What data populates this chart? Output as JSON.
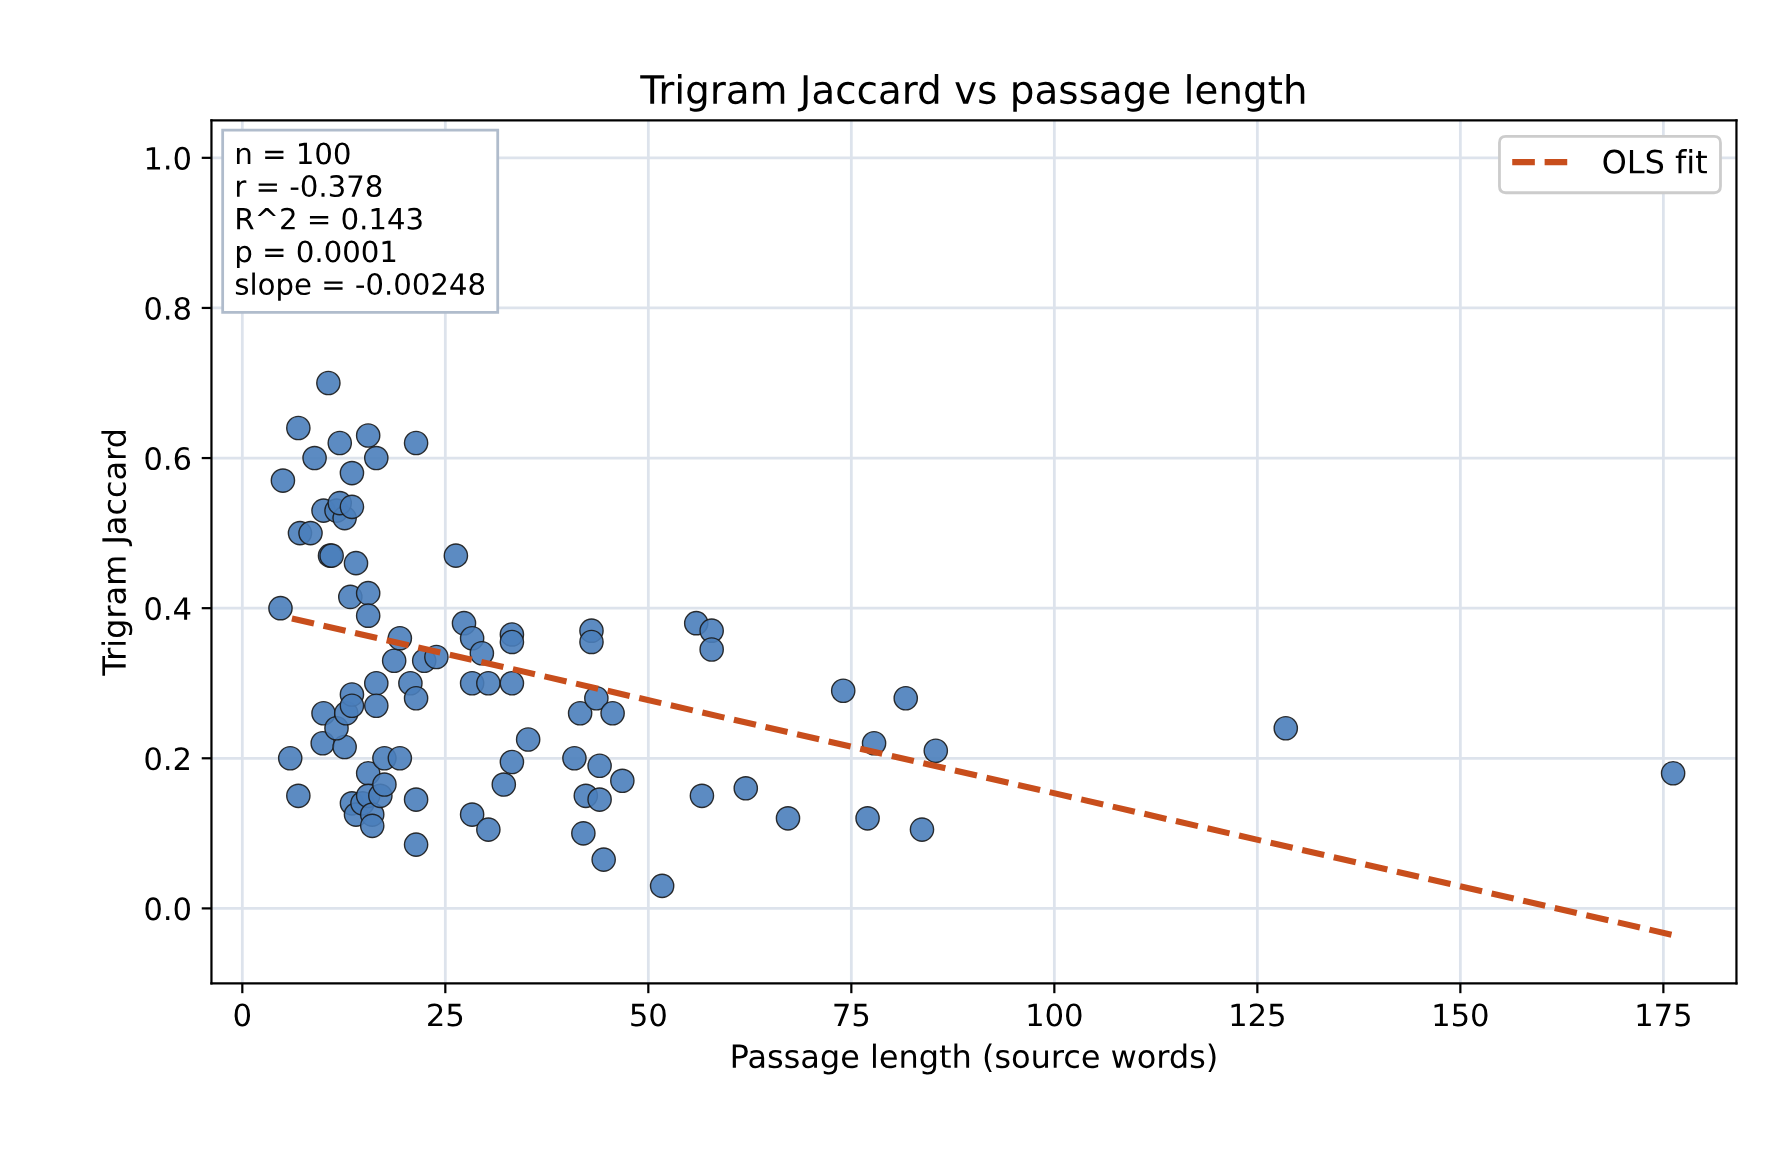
{
  "chart_data": {
    "type": "scatter",
    "title": "Trigram Jaccard vs passage length",
    "xlabel": "Passage length (source words)",
    "ylabel": "Trigram Jaccard",
    "xlim": [
      -3.8,
      184
    ],
    "ylim": [
      -0.1,
      1.05
    ],
    "xticks": [
      0,
      25,
      50,
      75,
      100,
      125,
      150,
      175
    ],
    "yticks": [
      {
        "value": 0,
        "label": "0.0"
      },
      0.2,
      0.4,
      0.6,
      0.8,
      {
        "value": 1,
        "label": "1.0"
      }
    ],
    "grid": true,
    "legend": "top right",
    "annotations": [
      "n = 100\nr = -0.378\nR^2 = 0.143\np = 0.0001\nslope = -0.00248"
    ],
    "series": [
      {
        "color": "#4a7ebb",
        "marker": "circle",
        "x": [
          4.7,
          5,
          5.9,
          6.9,
          6.9,
          7.1,
          8.4,
          8.9,
          10,
          9.9,
          10.6,
          10,
          11.6,
          10.8,
          11,
          12,
          12.6,
          12,
          13.5,
          13.5,
          13.3,
          14,
          12.6,
          11.6,
          12.8,
          13.5,
          13.5,
          13.5,
          14,
          14.8,
          15.5,
          15.5,
          15.5,
          16.5,
          16.5,
          16.5,
          15.5,
          15.5,
          16,
          16,
          17,
          17.5,
          17.5,
          18.7,
          19.4,
          19.4,
          20.7,
          21.4,
          21.4,
          21.4,
          21.4,
          22.4,
          23.9,
          26.3,
          27.3,
          28.3,
          28.3,
          28.3,
          29.5,
          30.3,
          30.3,
          32.2,
          33.2,
          33.2,
          33.2,
          33.2,
          35.2,
          40.9,
          41.6,
          42,
          42.3,
          43,
          43,
          43.6,
          44,
          44,
          44.5,
          45.6,
          46.8,
          51.7,
          55.9,
          56.6,
          57.8,
          57.8,
          62,
          67.2,
          74,
          77.8,
          77,
          81.7,
          83.7,
          85.4,
          128.5,
          176.2
        ],
        "values": [
          0.4,
          0.57,
          0.2,
          0.64,
          0.15,
          0.5,
          0.5,
          0.6,
          0.26,
          0.22,
          0.7,
          0.53,
          0.53,
          0.47,
          0.47,
          0.62,
          0.52,
          0.54,
          0.58,
          0.535,
          0.415,
          0.46,
          0.215,
          0.24,
          0.26,
          0.285,
          0.27,
          0.14,
          0.125,
          0.14,
          0.63,
          0.42,
          0.39,
          0.6,
          0.3,
          0.27,
          0.18,
          0.15,
          0.125,
          0.11,
          0.15,
          0.165,
          0.2,
          0.33,
          0.36,
          0.2,
          0.3,
          0.62,
          0.28,
          0.145,
          0.085,
          0.33,
          0.335,
          0.47,
          0.38,
          0.36,
          0.3,
          0.125,
          0.34,
          0.105,
          0.3,
          0.165,
          0.195,
          0.365,
          0.355,
          0.3,
          0.225,
          0.2,
          0.26,
          0.1,
          0.15,
          0.37,
          0.355,
          0.28,
          0.19,
          0.145,
          0.065,
          0.26,
          0.17,
          0.03,
          0.38,
          0.15,
          0.37,
          0.345,
          0.16,
          0.12,
          0.29,
          0.22,
          0.12,
          0.28,
          0.105,
          0.21,
          0.24,
          0.18
        ]
      },
      {
        "type": "line",
        "name": "OLS fit",
        "color": "#c84e1c",
        "line_style": "dashed",
        "x": [
          5,
          176
        ],
        "values": [
          0.389,
          -0.035
        ]
      }
    ]
  }
}
